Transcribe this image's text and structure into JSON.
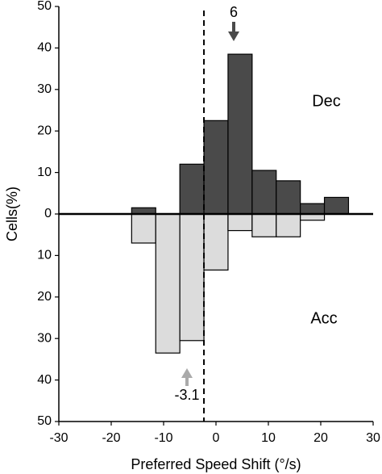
{
  "chart_data": {
    "type": "histogram",
    "xlabel": "Preferred Speed Shift (°/s)",
    "ylabel": "Cells(%)",
    "bins": [
      -16.1,
      -11.5,
      -6.9,
      -2.3,
      2.3,
      6.9,
      11.5,
      16.1,
      20.7,
      25.3
    ],
    "series": [
      {
        "name": "Dec",
        "color": "#4a4a4a",
        "values": [
          1.5,
          0,
          12,
          22.5,
          38.5,
          10.5,
          8,
          2.5,
          4
        ]
      },
      {
        "name": "Acc",
        "color": "#dcdcdc",
        "values": [
          -7,
          -33.5,
          -30.5,
          -13.5,
          -4,
          -5.5,
          -5.5,
          -1.5,
          0
        ]
      }
    ],
    "xlim": [
      -30,
      30
    ],
    "xticks": [
      -30,
      -20,
      -10,
      0,
      10,
      20,
      30
    ],
    "ylim": [
      -50,
      50
    ],
    "yticks": [
      {
        "value": -50,
        "label": "50"
      },
      {
        "value": -40,
        "label": "40"
      },
      {
        "value": -30,
        "label": "30"
      },
      {
        "value": -20,
        "label": "20"
      },
      {
        "value": -10,
        "label": "10"
      },
      0,
      10,
      20,
      30,
      40,
      50
    ],
    "reference_line_x": -2.3,
    "annotations": [
      {
        "text": "6",
        "color": "#4a4a4a"
      },
      {
        "text": "-3.1",
        "color": "#aaaaaa"
      }
    ]
  }
}
